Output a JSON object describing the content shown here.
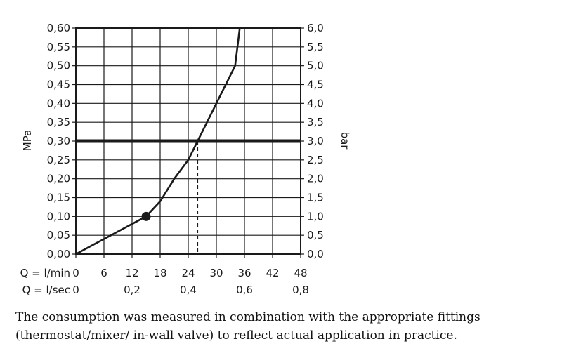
{
  "chart_data": {
    "type": "line",
    "left_axis_unit": "MPa",
    "right_axis_unit": "bar",
    "y_ticks_left": [
      "0,00",
      "0,05",
      "0,10",
      "0,15",
      "0,20",
      "0,25",
      "0,30",
      "0,35",
      "0,40",
      "0,45",
      "0,50",
      "0,55",
      "0,60"
    ],
    "y_ticks_right": [
      "0,0",
      "0,5",
      "1,0",
      "1,5",
      "2,0",
      "2,5",
      "3,0",
      "3,5",
      "4,0",
      "4,5",
      "5,0",
      "5,5",
      "6,0"
    ],
    "ylim": [
      0,
      0.6
    ],
    "x_row1_label": "Q = l/min",
    "x_ticks_lmin": [
      "0",
      "6",
      "12",
      "18",
      "24",
      "30",
      "36",
      "42",
      "48"
    ],
    "xlim": [
      0,
      48
    ],
    "x_row2_label": "Q = l/sec",
    "x_ticks_lsec": [
      "0",
      "0,2",
      "0,4",
      "0,6",
      "0,8"
    ],
    "series": [
      {
        "x": [
          0,
          6,
          15,
          18,
          21,
          24,
          26,
          30,
          34,
          35
        ],
        "y": [
          0,
          0.04,
          0.1,
          0.14,
          0.2,
          0.25,
          0.3,
          0.4,
          0.5,
          0.6
        ],
        "color": "#1a1a1a"
      }
    ],
    "reference_line": {
      "y": 0.3,
      "color": "#1a1a1a"
    },
    "operating_point": {
      "x": 26,
      "y": 0.3
    },
    "marker": {
      "x": 15,
      "y": 0.1
    }
  },
  "caption": "The consumption was measured in combination with the appropriate fittings (thermostat/mixer/ in-wall valve) to reflect actual application in practice."
}
